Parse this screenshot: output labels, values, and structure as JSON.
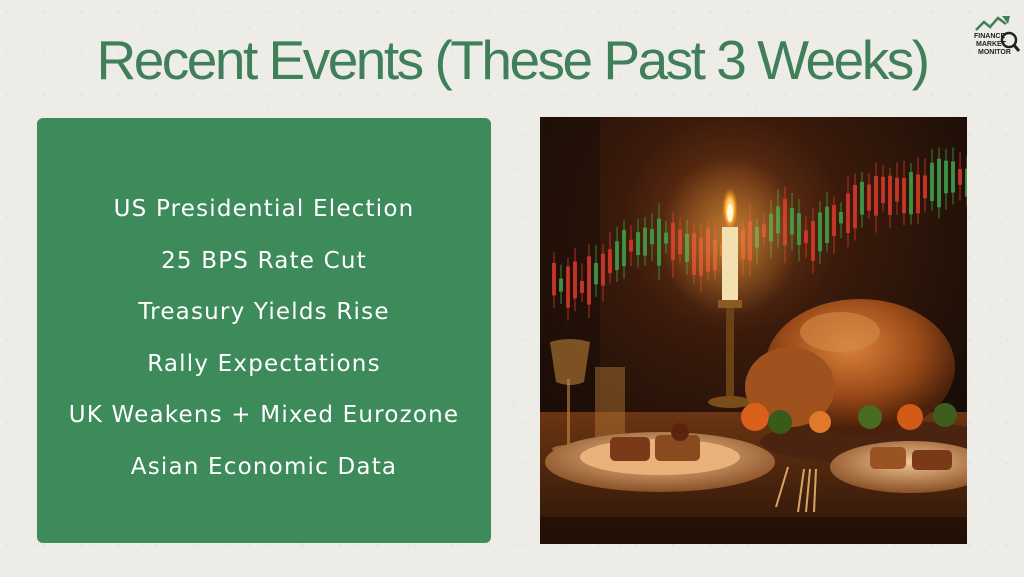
{
  "slide": {
    "title": "Recent  Events (These Past 3 Weeks)",
    "logo": {
      "icon": "finance-market-monitor-logo",
      "lines": [
        "FINANCE",
        "MARKET",
        "MONITOR"
      ]
    },
    "events": [
      "US Presidential Election",
      "25 BPS Rate Cut",
      "Treasury Yields Rise",
      "Rally Expectations",
      "UK Weakens + Mixed Eurozone",
      "Asian Economic Data"
    ],
    "image": {
      "subject": "candlelit-dinner-with-stock-chart-image"
    }
  },
  "colors": {
    "title": "#3f7f59",
    "panel": "#3d8a5b",
    "panel_text": "#ffffff",
    "background": "#eeece6"
  }
}
